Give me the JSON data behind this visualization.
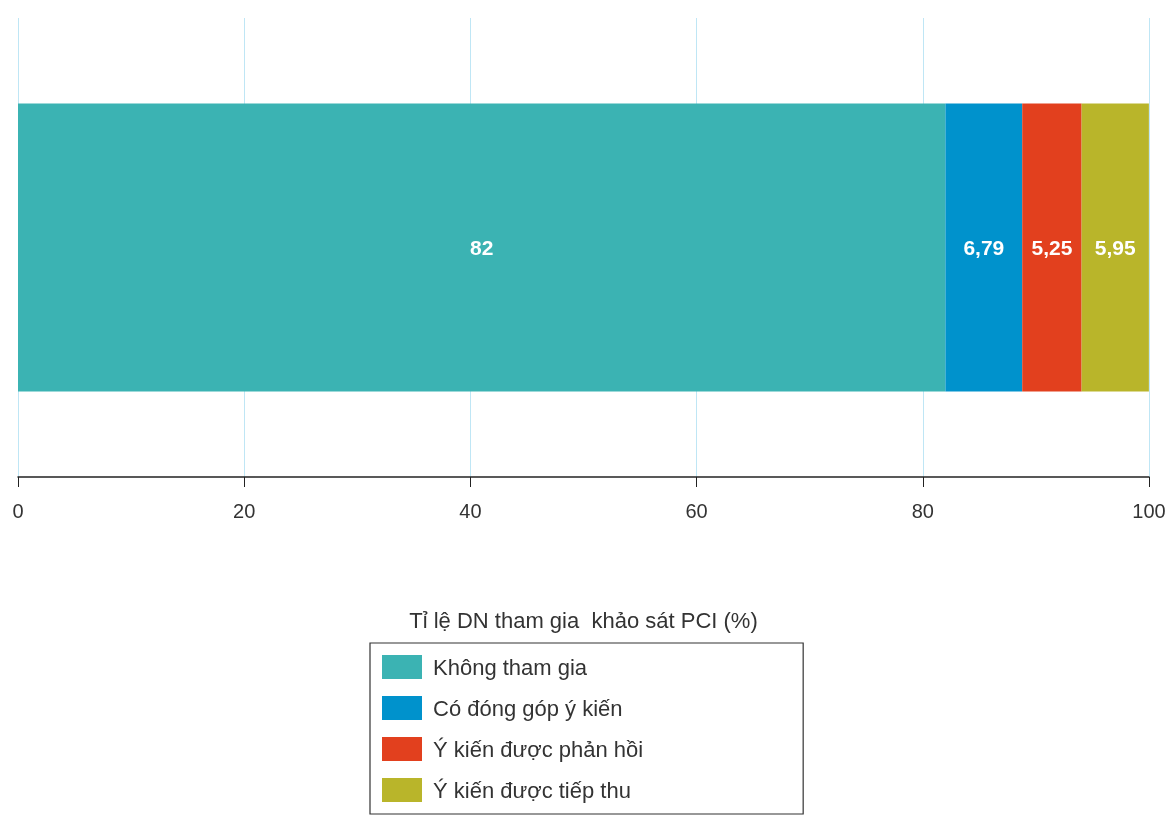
{
  "chart_data": {
    "type": "bar",
    "orientation": "horizontal",
    "stacked": true,
    "categories": [
      null
    ],
    "xlabel": "Tỉ lệ DN tham gia  khảo sát PCI (%)",
    "xlim": [
      0,
      100
    ],
    "xticks": [
      0,
      20,
      40,
      60,
      80,
      100
    ],
    "grid": "x",
    "legend": "bottom",
    "tick_labels": "x",
    "series": [
      {
        "name": "Không tham gia",
        "color": "#3bb3b3",
        "values": [
          82
        ],
        "value_labels": [
          "82"
        ]
      },
      {
        "name": "Có đóng góp ý kiến",
        "color": "#0092cc",
        "values": [
          6.79
        ],
        "value_labels": [
          "6,79"
        ]
      },
      {
        "name": "Ý kiến được phản hồi",
        "color": "#e2401e",
        "values": [
          5.25
        ],
        "value_labels": [
          "5,25"
        ]
      },
      {
        "name": "Ý kiến được tiếp thu",
        "color": "#b9b52a",
        "values": [
          5.95
        ],
        "value_labels": [
          "5,95"
        ]
      }
    ]
  }
}
